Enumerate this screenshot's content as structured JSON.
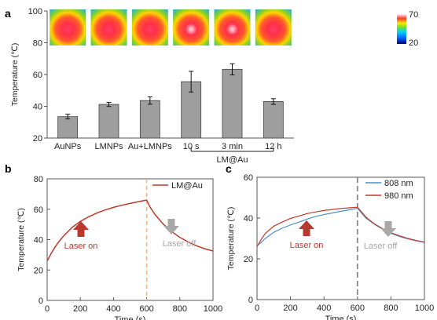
{
  "colors": {
    "bar_fill": "#9e9e9e",
    "bar_stroke": "#444444",
    "curve_red": "#c0392b",
    "curve_blue": "#4a90c8",
    "dashed_b": "#f0b48a",
    "dashed_c": "#888888",
    "arrow_red": "#b83a2e",
    "arrow_gray": "#a8a8a8"
  },
  "chart_data": [
    {
      "panel": "a",
      "type": "bar",
      "ylabel": "Temperature (℃)",
      "ylim": [
        20,
        100
      ],
      "yticks": [
        20,
        40,
        60,
        80,
        100
      ],
      "categories": [
        "AuNPs",
        "LMNPs",
        "Au+LMNPs",
        "10 s",
        "3 min",
        "12 h"
      ],
      "values": [
        33.5,
        41.2,
        43.6,
        55.5,
        63.3,
        43.0
      ],
      "errors": [
        1.5,
        1.3,
        2.3,
        6.5,
        3.5,
        1.8
      ],
      "group_label": "LM@Au",
      "colorbar": {
        "max": "70",
        "min": "20"
      }
    },
    {
      "panel": "b",
      "type": "line",
      "xlabel": "Time (s)",
      "ylabel": "Temperature (℃)",
      "xlim": [
        0,
        1000
      ],
      "ylim": [
        0,
        80
      ],
      "xticks": [
        0,
        200,
        400,
        600,
        800,
        1000
      ],
      "yticks": [
        0,
        20,
        40,
        60,
        80
      ],
      "legend_position": "top-right",
      "series": [
        {
          "name": "LM@Au",
          "x": [
            0,
            25,
            50,
            75,
            100,
            150,
            200,
            250,
            300,
            350,
            400,
            450,
            500,
            550,
            590,
            600,
            620,
            650,
            700,
            750,
            800,
            850,
            900,
            950,
            1000
          ],
          "y": [
            26.0,
            31.0,
            35.5,
            39.3,
            42.5,
            48.0,
            52.0,
            55.0,
            57.5,
            59.5,
            61.2,
            62.6,
            63.8,
            65.0,
            65.8,
            66.0,
            61.5,
            56.5,
            50.2,
            45.3,
            41.5,
            38.5,
            36.0,
            34.0,
            32.5
          ]
        }
      ],
      "annotations": [
        "Laser on",
        "Laser off"
      ]
    },
    {
      "panel": "c",
      "type": "line",
      "xlabel": "Time (s)",
      "ylabel": "Temperature (℃)",
      "xlim": [
        0,
        1000
      ],
      "ylim": [
        0,
        60
      ],
      "xticks": [
        0,
        200,
        400,
        600,
        800,
        1000
      ],
      "yticks": [
        0,
        20,
        40,
        60
      ],
      "legend_position": "top-right",
      "series": [
        {
          "name": "808 nm",
          "x": [
            0,
            25,
            50,
            100,
            150,
            200,
            250,
            300,
            350,
            400,
            450,
            500,
            550,
            600,
            650,
            700,
            750,
            800,
            850,
            900,
            950,
            1000
          ],
          "y": [
            26.5,
            28.0,
            30.0,
            33.0,
            35.0,
            36.6,
            38.0,
            39.5,
            40.8,
            41.7,
            42.5,
            43.3,
            44.0,
            44.8,
            40.0,
            37.0,
            34.5,
            32.5,
            31.0,
            29.8,
            28.8,
            28.0
          ]
        },
        {
          "name": "980 nm",
          "x": [
            0,
            25,
            50,
            100,
            150,
            200,
            250,
            300,
            350,
            400,
            450,
            500,
            550,
            600,
            650,
            700,
            750,
            800,
            850,
            900,
            950,
            1000
          ],
          "y": [
            26.0,
            29.5,
            32.5,
            36.0,
            38.0,
            39.8,
            41.0,
            42.2,
            43.0,
            43.7,
            44.2,
            44.7,
            45.0,
            45.3,
            40.5,
            37.2,
            34.8,
            32.8,
            31.3,
            30.0,
            29.0,
            28.2
          ]
        }
      ],
      "annotations": [
        "Laser on",
        "Laser off"
      ]
    }
  ],
  "panel_labels": [
    "a",
    "b",
    "c"
  ]
}
